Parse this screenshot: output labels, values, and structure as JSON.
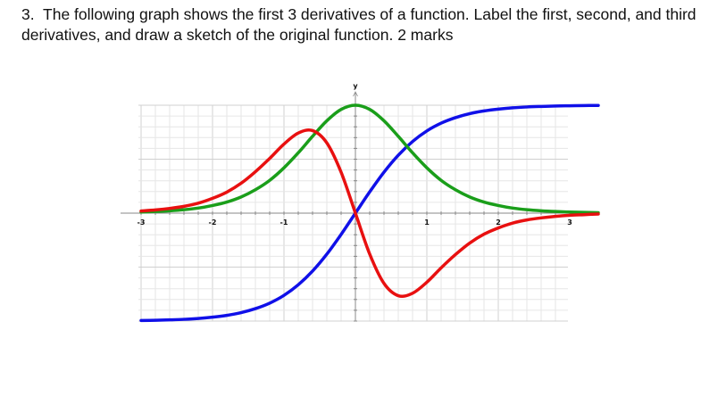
{
  "question": {
    "number": "3.",
    "text": "The following graph shows the first 3 derivatives of a function. Label the first, second, and third derivatives, and draw a sketch of the original function. 2 marks"
  },
  "chart_data": {
    "type": "line",
    "title": "",
    "xlabel": "",
    "ylabel": "y",
    "xlim": [
      -3,
      3.4
    ],
    "ylim": [
      -1,
      1
    ],
    "grid": true,
    "x_ticks": [
      "-3",
      "-2",
      "-1",
      "1",
      "2",
      "3"
    ],
    "x": [
      -3.0,
      -2.8,
      -2.6,
      -2.4,
      -2.2,
      -2.0,
      -1.8,
      -1.6,
      -1.4,
      -1.2,
      -1.0,
      -0.8,
      -0.6,
      -0.4,
      -0.2,
      0,
      0.2,
      0.4,
      0.6,
      0.8,
      1.0,
      1.2,
      1.4,
      1.6,
      1.8,
      2.0,
      2.2,
      2.4,
      2.6,
      2.8,
      3.0,
      3.2,
      3.4
    ],
    "series": [
      {
        "color": "#1010e8",
        "values": [
          -0.995,
          -0.993,
          -0.989,
          -0.984,
          -0.976,
          -0.964,
          -0.947,
          -0.922,
          -0.885,
          -0.834,
          -0.762,
          -0.664,
          -0.537,
          -0.38,
          -0.197,
          0,
          0.197,
          0.38,
          0.537,
          0.664,
          0.762,
          0.834,
          0.885,
          0.922,
          0.947,
          0.964,
          0.976,
          0.984,
          0.989,
          0.993,
          0.995,
          0.997,
          0.998
        ]
      },
      {
        "color": "#1a9e1a",
        "values": [
          0.01,
          0.015,
          0.022,
          0.032,
          0.047,
          0.071,
          0.103,
          0.15,
          0.217,
          0.304,
          0.42,
          0.559,
          0.712,
          0.856,
          0.961,
          1,
          0.961,
          0.856,
          0.712,
          0.559,
          0.42,
          0.304,
          0.217,
          0.15,
          0.103,
          0.071,
          0.047,
          0.032,
          0.022,
          0.015,
          0.01,
          0.007,
          0.004
        ]
      },
      {
        "color": "#e81010",
        "values": [
          0.02,
          0.03,
          0.044,
          0.063,
          0.092,
          0.137,
          0.195,
          0.277,
          0.384,
          0.507,
          0.64,
          0.742,
          0.765,
          0.651,
          0.379,
          0,
          -0.379,
          -0.651,
          -0.765,
          -0.742,
          -0.64,
          -0.507,
          -0.384,
          -0.277,
          -0.195,
          -0.137,
          -0.092,
          -0.063,
          -0.044,
          -0.03,
          -0.02,
          -0.014,
          -0.008
        ]
      }
    ]
  }
}
